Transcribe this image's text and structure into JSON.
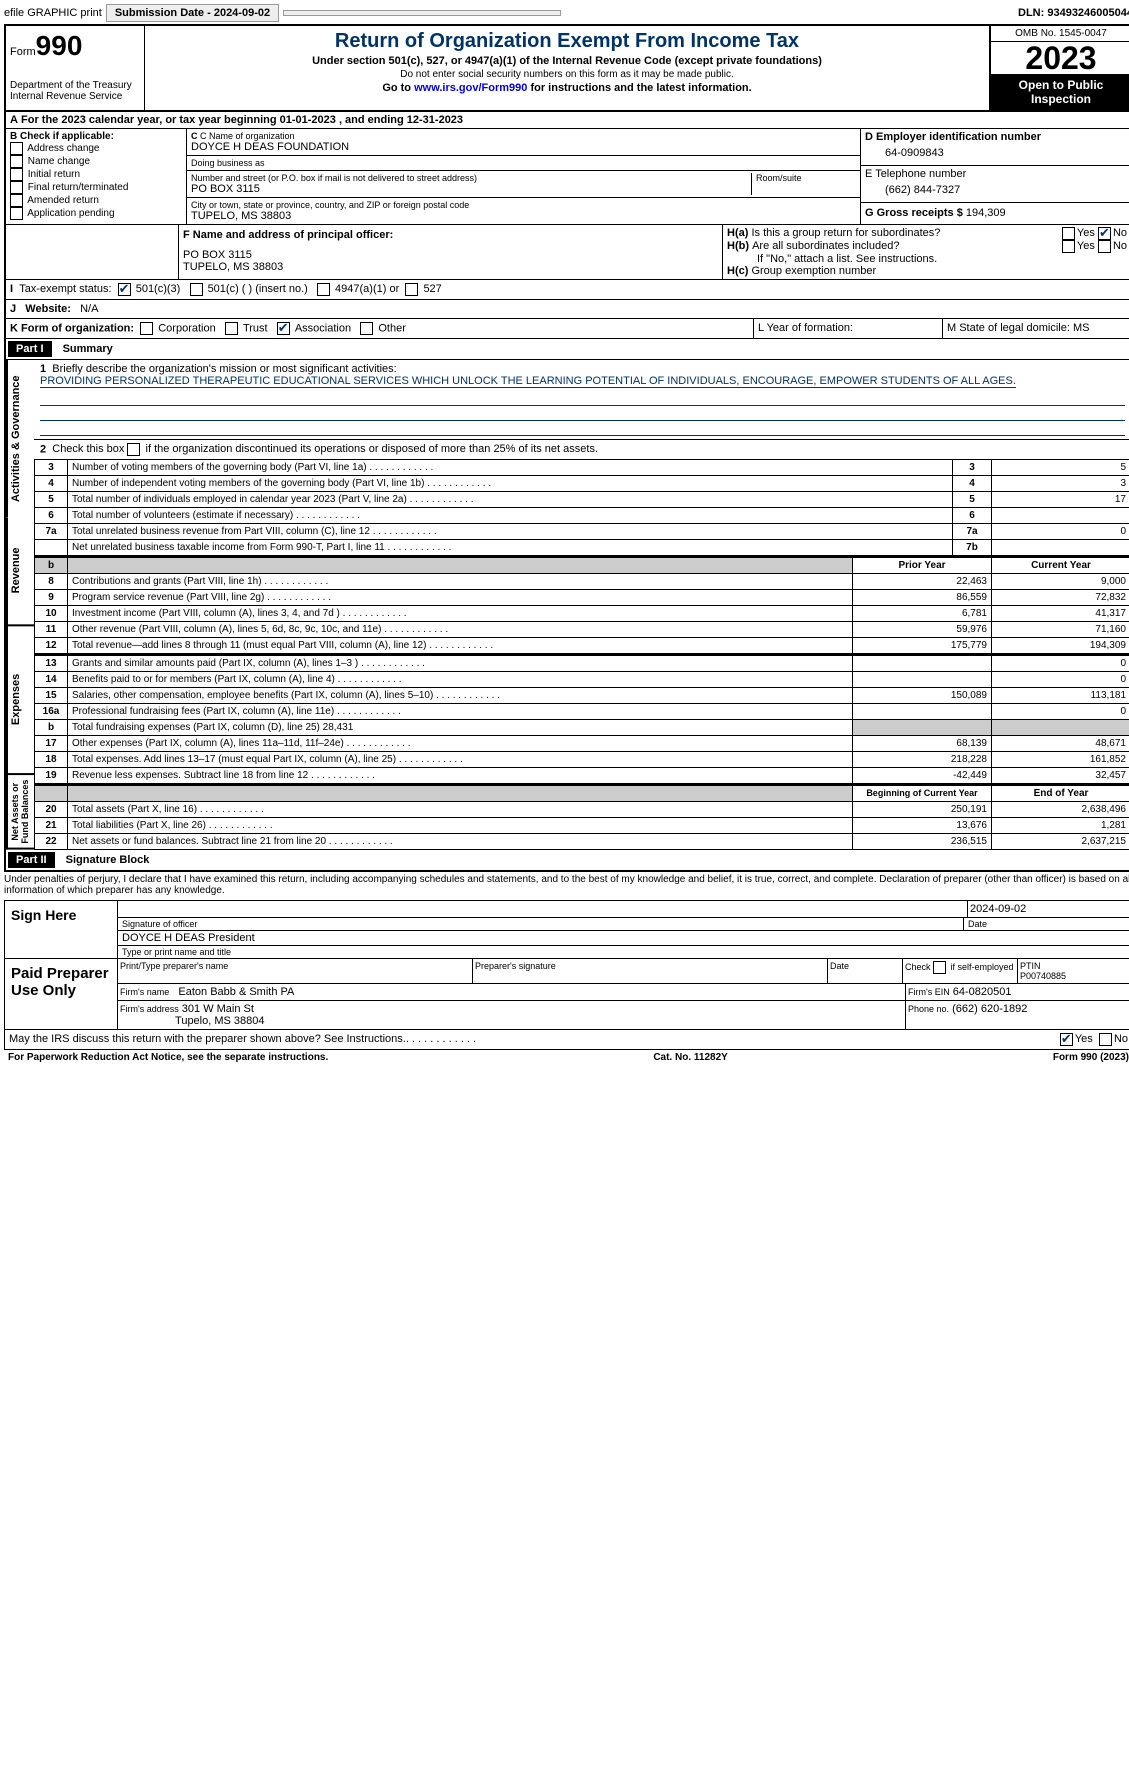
{
  "topbar": {
    "efile": "efile GRAPHIC print",
    "submission": "Submission Date - 2024-09-02",
    "dln": "DLN: 93493246005044"
  },
  "header": {
    "form_word": "Form",
    "form_no": "990",
    "dept": "Department of the Treasury",
    "irs": "Internal Revenue Service",
    "title": "Return of Organization Exempt From Income Tax",
    "sub1": "Under section 501(c), 527, or 4947(a)(1) of the Internal Revenue Code (except private foundations)",
    "sub2": "Do not enter social security numbers on this form as it may be made public.",
    "sub3_pre": "Go to ",
    "sub3_link": "www.irs.gov/Form990",
    "sub3_post": " for instructions and the latest information.",
    "omb": "OMB No. 1545-0047",
    "year": "2023",
    "open": "Open to Public Inspection"
  },
  "A": {
    "text": "For the 2023 calendar year, or tax year beginning 01-01-2023   , and ending 12-31-2023"
  },
  "B": {
    "label": "B Check if applicable:",
    "items": [
      "Address change",
      "Name change",
      "Initial return",
      "Final return/terminated",
      "Amended return",
      "Application pending"
    ]
  },
  "C": {
    "name_label": "C Name of organization",
    "name": "DOYCE H DEAS FOUNDATION",
    "dba_label": "Doing business as",
    "dba": "",
    "street_label": "Number and street (or P.O. box if mail is not delivered to street address)",
    "street": "PO BOX 3115",
    "room_label": "Room/suite",
    "room": "",
    "city_label": "City or town, state or province, country, and ZIP or foreign postal code",
    "city": "TUPELO, MS  38803"
  },
  "D": {
    "label": "D Employer identification number",
    "value": "64-0909843"
  },
  "E": {
    "label": "E Telephone number",
    "value": "(662) 844-7327"
  },
  "G": {
    "label": "G Gross receipts $",
    "value": "194,309"
  },
  "F": {
    "label": "F  Name and address of principal officer:",
    "line1": "PO BOX 3115",
    "line2": "TUPELO, MS  38803"
  },
  "H": {
    "a": "Is this a group return for subordinates?",
    "b": "Are all subordinates included?",
    "b_note": "If \"No,\" attach a list. See instructions.",
    "c": "Group exemption number",
    "yes": "Yes",
    "no": "No"
  },
  "I": {
    "label": "Tax-exempt status:",
    "o1": "501(c)(3)",
    "o2": "501(c) (  ) (insert no.)",
    "o3": "4947(a)(1) or",
    "o4": "527"
  },
  "J": {
    "label": "Website:",
    "value": "N/A"
  },
  "K": {
    "label": "K Form of organization:",
    "o1": "Corporation",
    "o2": "Trust",
    "o3": "Association",
    "o4": "Other"
  },
  "L": {
    "label": "L Year of formation:",
    "value": ""
  },
  "M": {
    "label": "M State of legal domicile: MS"
  },
  "part1": {
    "label": "Part I",
    "title": "Summary"
  },
  "summary": {
    "mission_label": "Briefly describe the organization's mission or most significant activities:",
    "mission": "PROVIDING PERSONALIZED THERAPEUTIC EDUCATIONAL SERVICES WHICH UNLOCK THE LEARNING POTENTIAL OF INDIVIDUALS, ENCOURAGE, EMPOWER STUDENTS OF ALL AGES.",
    "line2": "Check this box        if the organization discontinued its operations or disposed of more than 25% of its net assets.",
    "sections": {
      "gov": "Activities & Governance",
      "rev": "Revenue",
      "exp": "Expenses",
      "net": "Net Assets or Fund Balances"
    },
    "rows_gov": [
      {
        "n": "3",
        "t": "Number of voting members of the governing body (Part VI, line 1a)",
        "k": "3",
        "v": "5"
      },
      {
        "n": "4",
        "t": "Number of independent voting members of the governing body (Part VI, line 1b)",
        "k": "4",
        "v": "3"
      },
      {
        "n": "5",
        "t": "Total number of individuals employed in calendar year 2023 (Part V, line 2a)",
        "k": "5",
        "v": "17"
      },
      {
        "n": "6",
        "t": "Total number of volunteers (estimate if necessary)",
        "k": "6",
        "v": ""
      },
      {
        "n": "7a",
        "t": "Total unrelated business revenue from Part VIII, column (C), line 12",
        "k": "7a",
        "v": "0"
      },
      {
        "n": "",
        "t": "Net unrelated business taxable income from Form 990-T, Part I, line 11",
        "k": "7b",
        "v": ""
      }
    ],
    "hdr_prior": "Prior Year",
    "hdr_current": "Current Year",
    "rows_rev": [
      {
        "n": "8",
        "t": "Contributions and grants (Part VIII, line 1h)",
        "p": "22,463",
        "c": "9,000"
      },
      {
        "n": "9",
        "t": "Program service revenue (Part VIII, line 2g)",
        "p": "86,559",
        "c": "72,832"
      },
      {
        "n": "10",
        "t": "Investment income (Part VIII, column (A), lines 3, 4, and 7d )",
        "p": "6,781",
        "c": "41,317"
      },
      {
        "n": "11",
        "t": "Other revenue (Part VIII, column (A), lines 5, 6d, 8c, 9c, 10c, and 11e)",
        "p": "59,976",
        "c": "71,160"
      },
      {
        "n": "12",
        "t": "Total revenue—add lines 8 through 11 (must equal Part VIII, column (A), line 12)",
        "p": "175,779",
        "c": "194,309"
      }
    ],
    "rows_exp": [
      {
        "n": "13",
        "t": "Grants and similar amounts paid (Part IX, column (A), lines 1–3 )",
        "p": "",
        "c": "0"
      },
      {
        "n": "14",
        "t": "Benefits paid to or for members (Part IX, column (A), line 4)",
        "p": "",
        "c": "0"
      },
      {
        "n": "15",
        "t": "Salaries, other compensation, employee benefits (Part IX, column (A), lines 5–10)",
        "p": "150,089",
        "c": "113,181"
      },
      {
        "n": "16a",
        "t": "Professional fundraising fees (Part IX, column (A), line 11e)",
        "p": "",
        "c": "0"
      },
      {
        "n": "b",
        "t": "Total fundraising expenses (Part IX, column (D), line 25) 28,431",
        "p": "GREY",
        "c": "GREY"
      },
      {
        "n": "17",
        "t": "Other expenses (Part IX, column (A), lines 11a–11d, 11f–24e)",
        "p": "68,139",
        "c": "48,671"
      },
      {
        "n": "18",
        "t": "Total expenses. Add lines 13–17 (must equal Part IX, column (A), line 25)",
        "p": "218,228",
        "c": "161,852"
      },
      {
        "n": "19",
        "t": "Revenue less expenses. Subtract line 18 from line 12",
        "p": "-42,449",
        "c": "32,457"
      }
    ],
    "hdr_begin": "Beginning of Current Year",
    "hdr_end": "End of Year",
    "rows_net": [
      {
        "n": "20",
        "t": "Total assets (Part X, line 16)",
        "p": "250,191",
        "c": "2,638,496"
      },
      {
        "n": "21",
        "t": "Total liabilities (Part X, line 26)",
        "p": "13,676",
        "c": "1,281"
      },
      {
        "n": "22",
        "t": "Net assets or fund balances. Subtract line 21 from line 20",
        "p": "236,515",
        "c": "2,637,215"
      }
    ]
  },
  "part2": {
    "label": "Part II",
    "title": "Signature Block",
    "declaration": "Under penalties of perjury, I declare that I have examined this return, including accompanying schedules and statements, and to the best of my knowledge and belief, it is true, correct, and complete. Declaration of preparer (other than officer) is based on all information of which preparer has any knowledge."
  },
  "sign": {
    "here": "Sign Here",
    "sig_label": "Signature of officer",
    "date_label": "Date",
    "date": "2024-09-02",
    "name": "DOYCE H DEAS President",
    "title_label": "Type or print name and title"
  },
  "paid": {
    "label": "Paid Preparer Use Only",
    "pname_label": "Print/Type preparer's name",
    "psig_label": "Preparer's signature",
    "pdate_label": "Date",
    "check_label": "Check        if self-employed",
    "ptin_label": "PTIN",
    "ptin": "P00740885",
    "firm_label": "Firm's name",
    "firm": "Eaton Babb & Smith PA",
    "fein_label": "Firm's EIN",
    "fein": "64-0820501",
    "faddr_label": "Firm's address",
    "faddr1": "301 W Main St",
    "faddr2": "Tupelo, MS  38804",
    "phone_label": "Phone no.",
    "phone": "(662) 620-1892"
  },
  "discuss": "May the IRS discuss this return with the preparer shown above? See Instructions.",
  "footer": {
    "l": "For Paperwork Reduction Act Notice, see the separate instructions.",
    "c": "Cat. No. 11282Y",
    "r": "Form 990 (2023)"
  }
}
